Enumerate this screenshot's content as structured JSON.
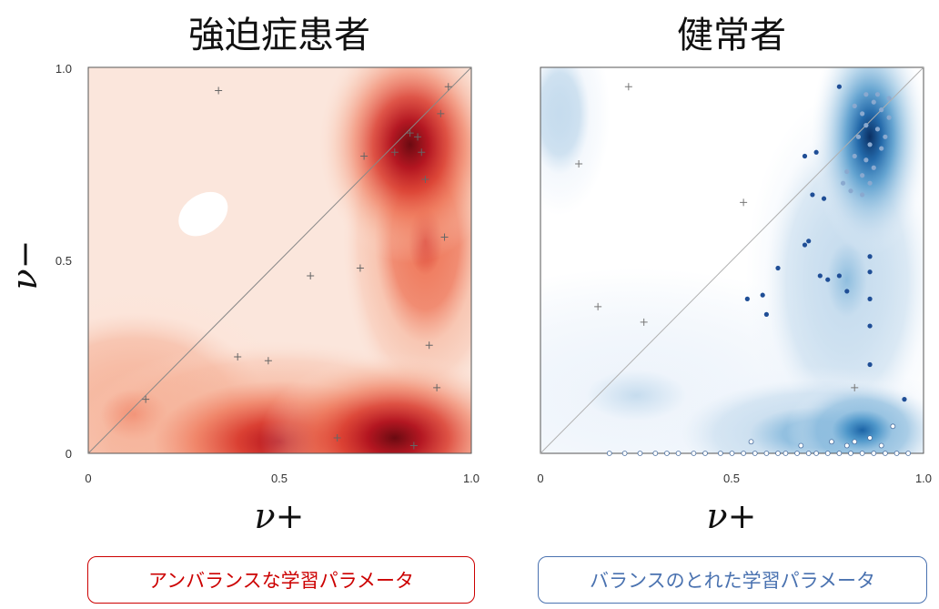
{
  "chart_data": [
    {
      "type": "scatter",
      "title": "強迫症患者",
      "xlabel": "ν+",
      "ylabel": "ν−",
      "xlim": [
        0,
        1
      ],
      "ylim": [
        0,
        1
      ],
      "x_ticks": [
        "0",
        "0.5",
        "1.0"
      ],
      "y_ticks": [
        "0",
        "0.5",
        "1.0"
      ],
      "colormap": "reds",
      "base_color": "#fbe6dc",
      "diagonal": true,
      "density_peaks": [
        {
          "x": 0.8,
          "y": 0.04,
          "level": 1.0,
          "sx": 0.16,
          "sy": 0.1
        },
        {
          "x": 0.5,
          "y": 0.03,
          "level": 0.72,
          "sx": 0.25,
          "sy": 0.12
        },
        {
          "x": 0.84,
          "y": 0.8,
          "level": 0.95,
          "sx": 0.11,
          "sy": 0.14
        },
        {
          "x": 0.88,
          "y": 0.55,
          "level": 0.55,
          "sx": 0.1,
          "sy": 0.2
        },
        {
          "x": 0.12,
          "y": 0.1,
          "level": 0.35,
          "sx": 0.2,
          "sy": 0.15
        }
      ],
      "light_region": {
        "x": 0.3,
        "y": 0.62,
        "rx": 0.07,
        "ry": 0.05
      },
      "points": [
        {
          "x": 0.34,
          "y": 0.94
        },
        {
          "x": 0.84,
          "y": 0.83
        },
        {
          "x": 0.86,
          "y": 0.82
        },
        {
          "x": 0.8,
          "y": 0.78
        },
        {
          "x": 0.87,
          "y": 0.78
        },
        {
          "x": 0.72,
          "y": 0.77
        },
        {
          "x": 0.88,
          "y": 0.71
        },
        {
          "x": 0.93,
          "y": 0.56
        },
        {
          "x": 0.58,
          "y": 0.46
        },
        {
          "x": 0.71,
          "y": 0.48
        },
        {
          "x": 0.39,
          "y": 0.25
        },
        {
          "x": 0.47,
          "y": 0.24
        },
        {
          "x": 0.15,
          "y": 0.14
        },
        {
          "x": 0.91,
          "y": 0.17
        },
        {
          "x": 0.92,
          "y": 0.88
        },
        {
          "x": 0.65,
          "y": 0.04
        },
        {
          "x": 0.85,
          "y": 0.02
        },
        {
          "x": 0.94,
          "y": 0.95
        },
        {
          "x": 0.89,
          "y": 0.28
        }
      ]
    },
    {
      "type": "scatter",
      "title": "健常者",
      "xlabel": "ν+",
      "ylabel": "",
      "xlim": [
        0,
        1
      ],
      "ylim": [
        0,
        1
      ],
      "x_ticks": [
        "0",
        "0.5",
        "1.0"
      ],
      "y_ticks": [],
      "colormap": "blues",
      "base_color": "#ffffff",
      "diagonal": true,
      "density_peaks": [
        {
          "x": 0.86,
          "y": 0.82,
          "level": 1.0,
          "sx": 0.07,
          "sy": 0.14
        },
        {
          "x": 0.84,
          "y": 0.06,
          "level": 0.78,
          "sx": 0.09,
          "sy": 0.06
        },
        {
          "x": 0.72,
          "y": 0.05,
          "level": 0.45,
          "sx": 0.2,
          "sy": 0.08
        },
        {
          "x": 0.8,
          "y": 0.45,
          "level": 0.35,
          "sx": 0.12,
          "sy": 0.22
        },
        {
          "x": 0.05,
          "y": 0.88,
          "level": 0.22,
          "sx": 0.06,
          "sy": 0.12
        },
        {
          "x": 0.25,
          "y": 0.15,
          "level": 0.12,
          "sx": 0.3,
          "sy": 0.15
        }
      ],
      "points": [
        {
          "x": 0.23,
          "y": 0.95,
          "m": "+"
        },
        {
          "x": 0.1,
          "y": 0.75,
          "m": "+"
        },
        {
          "x": 0.53,
          "y": 0.65,
          "m": "+"
        },
        {
          "x": 0.15,
          "y": 0.38,
          "m": "+"
        },
        {
          "x": 0.27,
          "y": 0.34,
          "m": "+"
        },
        {
          "x": 0.82,
          "y": 0.17,
          "m": "+"
        },
        {
          "x": 0.78,
          "y": 0.95
        },
        {
          "x": 0.72,
          "y": 0.78
        },
        {
          "x": 0.69,
          "y": 0.77
        },
        {
          "x": 0.71,
          "y": 0.67
        },
        {
          "x": 0.74,
          "y": 0.66
        },
        {
          "x": 0.7,
          "y": 0.55
        },
        {
          "x": 0.69,
          "y": 0.54
        },
        {
          "x": 0.62,
          "y": 0.48
        },
        {
          "x": 0.73,
          "y": 0.46
        },
        {
          "x": 0.75,
          "y": 0.45
        },
        {
          "x": 0.78,
          "y": 0.46
        },
        {
          "x": 0.86,
          "y": 0.51
        },
        {
          "x": 0.86,
          "y": 0.47
        },
        {
          "x": 0.58,
          "y": 0.41
        },
        {
          "x": 0.54,
          "y": 0.4
        },
        {
          "x": 0.8,
          "y": 0.42
        },
        {
          "x": 0.86,
          "y": 0.4
        },
        {
          "x": 0.59,
          "y": 0.36
        },
        {
          "x": 0.86,
          "y": 0.33
        },
        {
          "x": 0.86,
          "y": 0.23
        },
        {
          "x": 0.95,
          "y": 0.14
        },
        {
          "x": 0.82,
          "y": 0.9
        },
        {
          "x": 0.84,
          "y": 0.88
        },
        {
          "x": 0.87,
          "y": 0.91
        },
        {
          "x": 0.89,
          "y": 0.89
        },
        {
          "x": 0.91,
          "y": 0.87
        },
        {
          "x": 0.85,
          "y": 0.85
        },
        {
          "x": 0.88,
          "y": 0.84
        },
        {
          "x": 0.9,
          "y": 0.82
        },
        {
          "x": 0.83,
          "y": 0.82
        },
        {
          "x": 0.86,
          "y": 0.8
        },
        {
          "x": 0.89,
          "y": 0.79
        },
        {
          "x": 0.82,
          "y": 0.77
        },
        {
          "x": 0.85,
          "y": 0.76
        },
        {
          "x": 0.87,
          "y": 0.74
        },
        {
          "x": 0.8,
          "y": 0.73
        },
        {
          "x": 0.84,
          "y": 0.72
        },
        {
          "x": 0.86,
          "y": 0.7
        },
        {
          "x": 0.81,
          "y": 0.68
        },
        {
          "x": 0.84,
          "y": 0.67
        },
        {
          "x": 0.79,
          "y": 0.7
        },
        {
          "x": 0.91,
          "y": 0.92
        },
        {
          "x": 0.88,
          "y": 0.93
        },
        {
          "x": 0.85,
          "y": 0.93
        },
        {
          "x": 0.55,
          "y": 0.03,
          "m": "o"
        },
        {
          "x": 0.68,
          "y": 0.02,
          "m": "o"
        },
        {
          "x": 0.76,
          "y": 0.03,
          "m": "o"
        },
        {
          "x": 0.82,
          "y": 0.03,
          "m": "o"
        },
        {
          "x": 0.86,
          "y": 0.04,
          "m": "o"
        },
        {
          "x": 0.89,
          "y": 0.02,
          "m": "o"
        },
        {
          "x": 0.92,
          "y": 0.07,
          "m": "o"
        },
        {
          "x": 0.8,
          "y": 0.02,
          "m": "o"
        },
        {
          "x": 0.18,
          "y": 0.0,
          "m": "o"
        },
        {
          "x": 0.22,
          "y": 0.0,
          "m": "o"
        },
        {
          "x": 0.26,
          "y": 0.0,
          "m": "o"
        },
        {
          "x": 0.3,
          "y": 0.0,
          "m": "o"
        },
        {
          "x": 0.33,
          "y": 0.0,
          "m": "o"
        },
        {
          "x": 0.36,
          "y": 0.0,
          "m": "o"
        },
        {
          "x": 0.4,
          "y": 0.0,
          "m": "o"
        },
        {
          "x": 0.43,
          "y": 0.0,
          "m": "o"
        },
        {
          "x": 0.47,
          "y": 0.0,
          "m": "o"
        },
        {
          "x": 0.5,
          "y": 0.0,
          "m": "o"
        },
        {
          "x": 0.53,
          "y": 0.0,
          "m": "o"
        },
        {
          "x": 0.56,
          "y": 0.0,
          "m": "o"
        },
        {
          "x": 0.59,
          "y": 0.0,
          "m": "o"
        },
        {
          "x": 0.62,
          "y": 0.0,
          "m": "o"
        },
        {
          "x": 0.64,
          "y": 0.0,
          "m": "o"
        },
        {
          "x": 0.67,
          "y": 0.0,
          "m": "o"
        },
        {
          "x": 0.7,
          "y": 0.0,
          "m": "o"
        },
        {
          "x": 0.72,
          "y": 0.0,
          "m": "o"
        },
        {
          "x": 0.75,
          "y": 0.0,
          "m": "o"
        },
        {
          "x": 0.78,
          "y": 0.0,
          "m": "o"
        },
        {
          "x": 0.81,
          "y": 0.0,
          "m": "o"
        },
        {
          "x": 0.84,
          "y": 0.0,
          "m": "o"
        },
        {
          "x": 0.87,
          "y": 0.0,
          "m": "o"
        },
        {
          "x": 0.9,
          "y": 0.0,
          "m": "o"
        },
        {
          "x": 0.93,
          "y": 0.0,
          "m": "o"
        },
        {
          "x": 0.96,
          "y": 0.0,
          "m": "o"
        }
      ]
    }
  ],
  "annotations": [
    {
      "text": "アンバランスな学習パラメータ",
      "color": "#cc0000"
    },
    {
      "text": "バランスのとれた学習パラメータ",
      "color": "#4a72b0"
    }
  ]
}
